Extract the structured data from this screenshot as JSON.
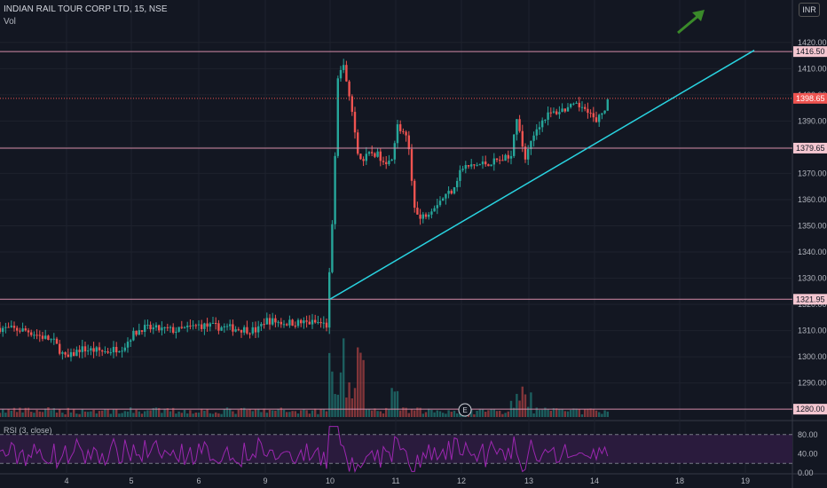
{
  "header": {
    "symbol": "INDIAN RAIL TOUR CORP LTD, 15, NSE",
    "vol_label": "Vol",
    "rsi_label": "RSI (3, close)",
    "currency": "INR"
  },
  "colors": {
    "up": "#26a69a",
    "down": "#ef5350",
    "level": "#d58ba7",
    "trend": "#29d3e0",
    "rsi": "#9c27b0",
    "arrow": "#3a8a2a"
  },
  "chart_data": {
    "type": "candlestick",
    "ylim": [
      1277,
      1424
    ],
    "y_ticks": [
      1290,
      1300,
      1310,
      1320,
      1330,
      1340,
      1350,
      1360,
      1370,
      1380,
      1390,
      1400,
      1410,
      1420
    ],
    "x_ticks": [
      "4",
      "5",
      "6",
      "9",
      "10",
      "11",
      "12",
      "13",
      "14",
      "18",
      "19"
    ],
    "levels": [
      {
        "label": "1416.50",
        "value": 1416.5
      },
      {
        "label": "1398.65",
        "value": 1398.65
      },
      {
        "label": "1379.65",
        "value": 1379.65
      },
      {
        "label": "1321.95",
        "value": 1321.95
      },
      {
        "label": "1280.00",
        "value": 1280.0
      }
    ],
    "trendline": [
      {
        "x": "10",
        "y": 1322
      },
      {
        "x": "19",
        "y": 1417
      }
    ],
    "rsi_ticks": [
      "80.00",
      "40.00",
      "0.00"
    ],
    "event_marker": "E"
  }
}
